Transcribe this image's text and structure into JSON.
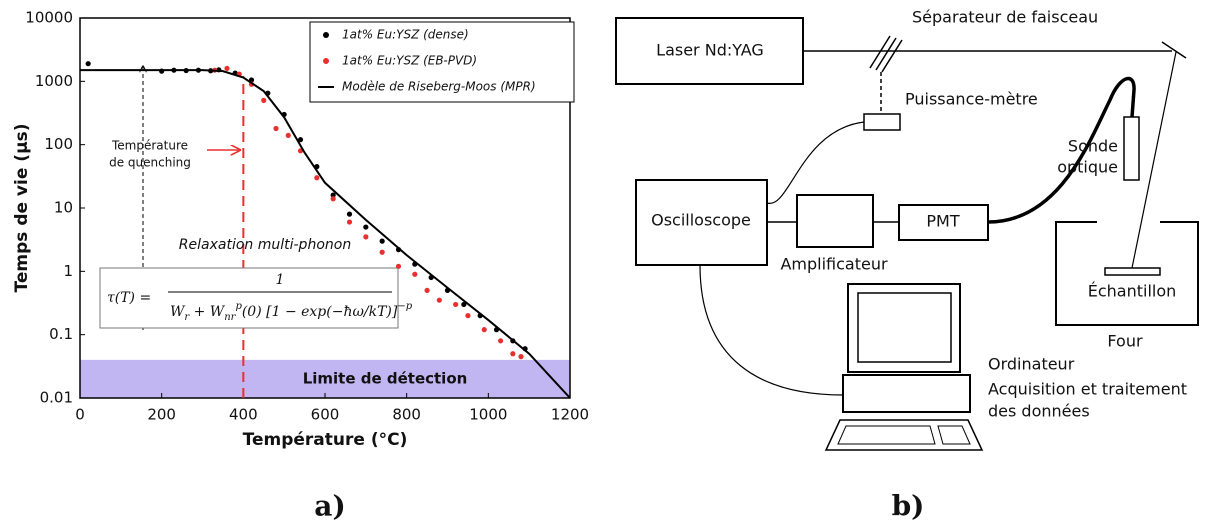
{
  "chart_data": {
    "type": "scatter",
    "xlabel": "Température (°C)",
    "ylabel": "Temps de vie (µs)",
    "xlim": [
      0,
      1200
    ],
    "xticks": [
      0,
      200,
      400,
      600,
      800,
      1000,
      1200
    ],
    "ylim": [
      0.01,
      10000
    ],
    "yticks": [
      10000,
      1000,
      100,
      10,
      1,
      0.1,
      0.01
    ],
    "log_y": true,
    "legend": "upper right",
    "series": [
      {
        "name": "1at% Eu:YSZ (dense)",
        "color": "#000000",
        "x": [
          20,
          200,
          230,
          260,
          290,
          320,
          340,
          380,
          420,
          460,
          500,
          540,
          580,
          620,
          660,
          700,
          740,
          780,
          820,
          860,
          900,
          940,
          980,
          1020,
          1060,
          1090
        ],
        "values": [
          1900,
          1450,
          1500,
          1480,
          1500,
          1470,
          1520,
          1350,
          1050,
          650,
          300,
          120,
          45,
          16,
          8,
          5,
          3,
          2.2,
          1.3,
          0.8,
          0.5,
          0.3,
          0.2,
          0.12,
          0.08,
          0.06
        ]
      },
      {
        "name": "1at% Eu:YSZ (EB-PVD)",
        "color": "#e8312f",
        "x": [
          330,
          360,
          390,
          420,
          450,
          480,
          510,
          540,
          580,
          620,
          660,
          700,
          740,
          780,
          820,
          850,
          880,
          920,
          950,
          990,
          1030,
          1060,
          1080
        ],
        "values": [
          1500,
          1600,
          1300,
          900,
          500,
          180,
          140,
          80,
          30,
          14,
          6,
          3.5,
          2,
          1.2,
          0.9,
          0.5,
          0.35,
          0.3,
          0.2,
          0.12,
          0.08,
          0.05,
          0.045
        ]
      },
      {
        "name": "Modèle de Riseberg-Moos (MPR)",
        "color": "#000000",
        "type": "line",
        "x": [
          0,
          300,
          350,
          400,
          450,
          500,
          550,
          600,
          700,
          800,
          900,
          1000,
          1100,
          1200
        ],
        "values": [
          1500,
          1500,
          1450,
          1150,
          700,
          270,
          75,
          25,
          6.5,
          1.8,
          0.55,
          0.17,
          0.05,
          0.01
        ]
      }
    ],
    "quenching_temperature": {
      "text": [
        "Température",
        "de quenching"
      ],
      "x": 400,
      "color": "#e8312f"
    },
    "detection_limit": {
      "text": "Limite de détection",
      "y": 0.04,
      "color": "#b6a8f0"
    },
    "annotation": "Relaxation multi-phonon",
    "formula": {
      "lhs": "τ(T) =",
      "numerator": "1",
      "denominator": [
        {
          "text": "W"
        },
        {
          "text": "r",
          "sub": true
        },
        {
          "text": " + W"
        },
        {
          "text": "nr",
          "sub": true
        },
        {
          "text": "p",
          "sup": true
        },
        {
          "text": "(0) [1 − exp(−ħω/kT)]"
        },
        {
          "text": "−p",
          "sup": true
        }
      ]
    }
  },
  "diagram": {
    "laser": "Laser Nd:YAG",
    "beam_splitter": "Séparateur de faisceau",
    "power_meter": "Puissance-mètre",
    "probe": [
      "Sonde",
      "optique"
    ],
    "oscilloscope": "Oscilloscope",
    "amplifier": "Amplificateur",
    "pmt": "PMT",
    "sample": "Échantillon",
    "furnace": "Four",
    "computer": [
      "Ordinateur",
      "Acquisition et traitement",
      "des données"
    ]
  },
  "panel_labels": [
    "a)",
    "b)"
  ]
}
